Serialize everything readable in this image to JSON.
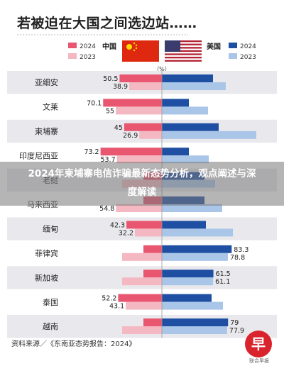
{
  "title": "若被迫在大国之间选边站……",
  "unit": "（%）",
  "colors": {
    "china_2024": "#e8566f",
    "china_2023": "#f4b8c2",
    "us_2024": "#1f4fa3",
    "us_2023": "#a9c6e8",
    "row_band": "#e9e9ed",
    "china_flag": "#de2910",
    "china_star": "#ffde00"
  },
  "legend": {
    "left": [
      {
        "label": "2024"
      },
      {
        "label": "2023"
      }
    ],
    "china": "中国",
    "us": "美国",
    "right": [
      {
        "label": "2024"
      },
      {
        "label": "2023"
      }
    ]
  },
  "overlay": {
    "banner_line1": "2024年柬埔寨电信诈骗最新态势分析，观点阐述与深",
    "banner_line2": "度解读"
  },
  "source": "资料来源／《东南亚态势报告：2024》",
  "logo": {
    "char": "早",
    "text": "联合早报"
  },
  "chart_data": {
    "type": "bar",
    "orientation": "horizontal-diverging",
    "categories": [
      "亚细安",
      "文莱",
      "柬埔寨",
      "印度尼西亚",
      "老挝",
      "马来西亚",
      "缅甸",
      "菲律宾",
      "新加坡",
      "泰国",
      "越南"
    ],
    "series": [
      {
        "name": "中国 2024",
        "values": [
          50.5,
          70.1,
          45,
          73.2,
          null,
          null,
          42.3,
          null,
          null,
          52.2,
          null
        ],
        "shown_labels": [
          "50.5",
          "70.1",
          "45",
          "73.2",
          "",
          "",
          "42.3",
          "",
          "",
          "52.2",
          ""
        ]
      },
      {
        "name": "中国 2023",
        "values": [
          38.9,
          55,
          26.9,
          53.7,
          null,
          54.8,
          32.2,
          null,
          null,
          43.1,
          null
        ],
        "shown_labels": [
          "38.9",
          "55",
          "26.9",
          "53.7",
          "",
          "54.8",
          "32.2",
          "",
          "",
          "43.1",
          ""
        ]
      },
      {
        "name": "美国 2024",
        "values": [
          null,
          null,
          null,
          null,
          null,
          null,
          null,
          83.3,
          61.5,
          null,
          79
        ],
        "shown_labels": [
          "",
          "",
          "",
          "",
          "",
          "",
          "",
          "83.3",
          "61.5",
          "",
          "79"
        ]
      },
      {
        "name": "美国 2023",
        "values": [
          null,
          null,
          null,
          null,
          null,
          null,
          null,
          78.8,
          61.1,
          null,
          77.9
        ],
        "shown_labels": [
          "",
          "",
          "",
          "",
          "",
          "",
          "",
          "78.8",
          "61.1",
          "",
          "77.9"
        ]
      }
    ],
    "unit": "%"
  }
}
